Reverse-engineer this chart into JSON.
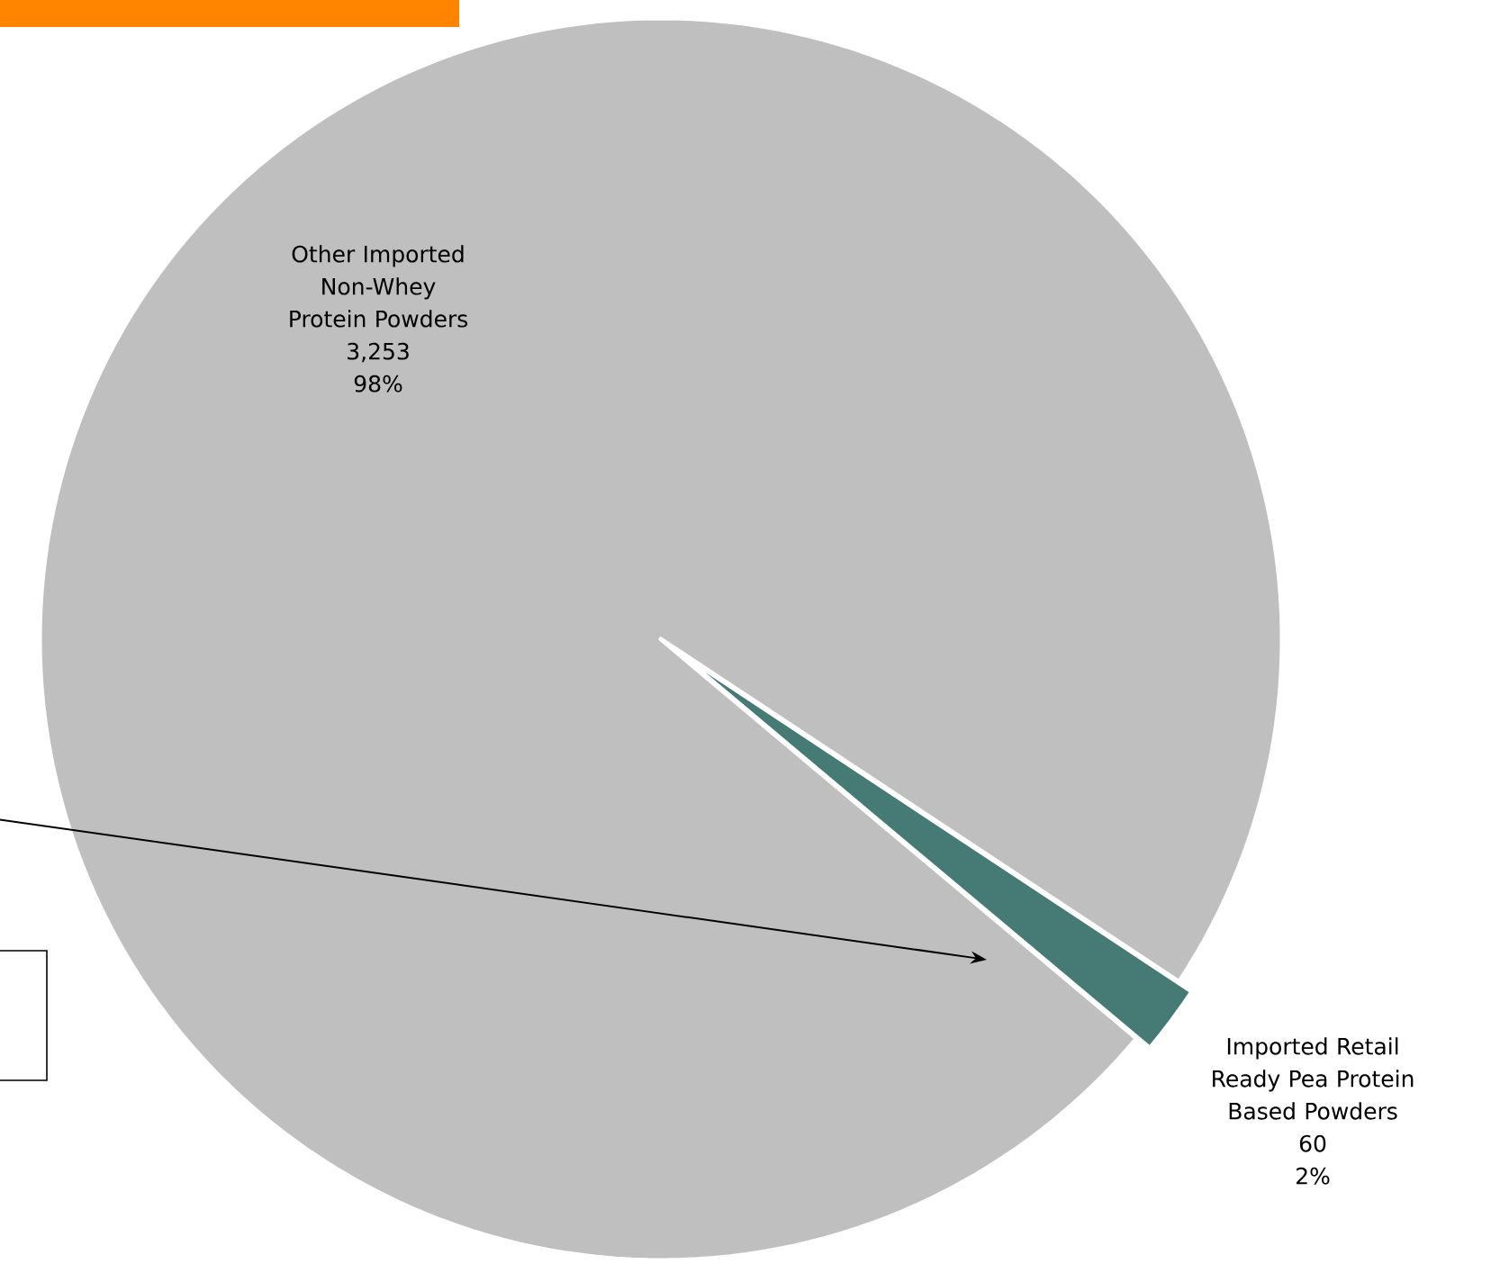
{
  "chart_data": {
    "type": "pie",
    "categories": [
      "Other Imported Non-Whey Protein Powders",
      "Imported Retail Ready Pea Protein Based Powders"
    ],
    "values": [
      3253,
      60
    ],
    "colors": [
      "#bfbfbf",
      "#467a74"
    ],
    "value_labels": [
      "3,253",
      "60"
    ],
    "annotations": [
      "98%",
      "2%"
    ]
  }
}
